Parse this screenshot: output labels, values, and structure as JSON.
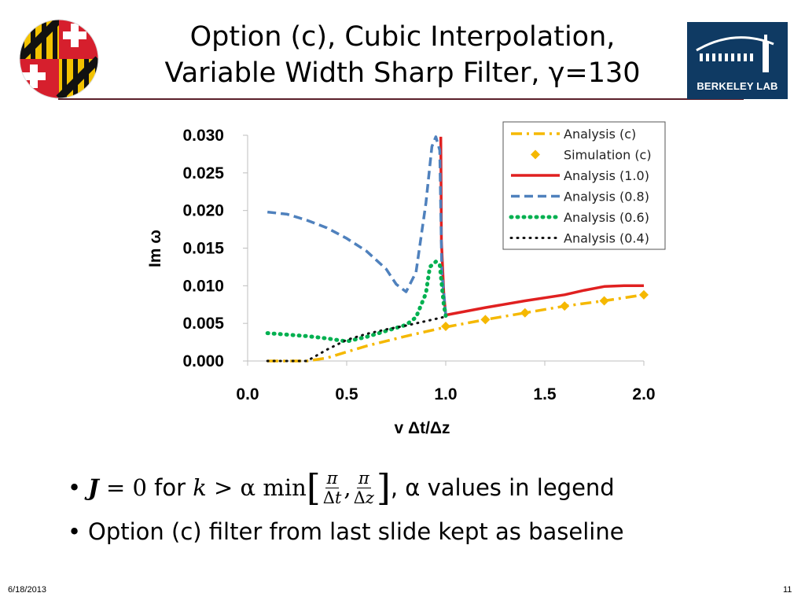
{
  "slide": {
    "title_line1": "Option (c), Cubic Interpolation,",
    "title_line2": "Variable Width Sharp Filter, γ=130",
    "logo_right_label": "BERKELEY LAB",
    "bullet1_suffix": ", α values in legend",
    "bullet2": "Option (c) filter from last slide kept as baseline",
    "footer_date": "6/18/2013",
    "footer_page": "11"
  },
  "chart_data": {
    "type": "line",
    "title": "",
    "xlabel": "v Δt/Δz",
    "ylabel": "Im ω",
    "xlim": [
      0.0,
      2.0
    ],
    "ylim": [
      0.0,
      0.03
    ],
    "xticks": [
      "0.0",
      "0.5",
      "1.0",
      "1.5",
      "2.0"
    ],
    "yticks": [
      "0.000",
      "0.005",
      "0.010",
      "0.015",
      "0.020",
      "0.025",
      "0.030"
    ],
    "grid": false,
    "legend_position": "top-right",
    "series": [
      {
        "name": "Analysis (c)",
        "style": "dashdot",
        "color": "#f5b800",
        "x": [
          0.1,
          0.3,
          0.4,
          0.5,
          0.6,
          0.8,
          1.0,
          1.2,
          1.4,
          1.6,
          1.8,
          2.0
        ],
        "y": [
          0.0,
          0.0,
          0.0004,
          0.0012,
          0.002,
          0.0033,
          0.0045,
          0.0055,
          0.0064,
          0.0073,
          0.008,
          0.0088
        ]
      },
      {
        "name": "Simulation (c)",
        "style": "markers",
        "color": "#f5b800",
        "x": [
          1.0,
          1.2,
          1.4,
          1.6,
          1.8,
          2.0
        ],
        "y": [
          0.0046,
          0.0055,
          0.0064,
          0.0073,
          0.008,
          0.0088
        ]
      },
      {
        "name": "Analysis (1.0)",
        "style": "solid",
        "color": "#e02020",
        "x": [
          0.975,
          0.978,
          0.99,
          1.0,
          1.2,
          1.4,
          1.6,
          1.7,
          1.8,
          1.9,
          2.0
        ],
        "y": [
          0.0298,
          0.016,
          0.009,
          0.0061,
          0.0071,
          0.008,
          0.0088,
          0.0094,
          0.0099,
          0.01,
          0.01
        ]
      },
      {
        "name": "Analysis (0.8)",
        "style": "dashed",
        "color": "#4f81bd",
        "x": [
          0.1,
          0.2,
          0.3,
          0.4,
          0.5,
          0.6,
          0.7,
          0.75,
          0.8,
          0.85,
          0.9,
          0.93,
          0.95,
          0.97,
          0.98,
          1.0
        ],
        "y": [
          0.0198,
          0.0195,
          0.0187,
          0.0177,
          0.0163,
          0.0146,
          0.0122,
          0.0102,
          0.0092,
          0.0118,
          0.021,
          0.0285,
          0.0298,
          0.028,
          0.012,
          0.0061
        ]
      },
      {
        "name": "Analysis (0.6)",
        "style": "dotted",
        "color": "#00b050",
        "x": [
          0.1,
          0.2,
          0.3,
          0.4,
          0.5,
          0.6,
          0.7,
          0.8,
          0.85,
          0.9,
          0.92,
          0.95,
          0.97,
          0.99,
          1.0
        ],
        "y": [
          0.0037,
          0.0035,
          0.0033,
          0.003,
          0.0026,
          0.0032,
          0.004,
          0.0048,
          0.0058,
          0.009,
          0.0125,
          0.0132,
          0.0128,
          0.0075,
          0.006
        ]
      },
      {
        "name": "Analysis (0.4)",
        "style": "dotted",
        "color": "#111111",
        "x": [
          0.1,
          0.2,
          0.3,
          0.4,
          0.5,
          0.6,
          0.7,
          0.8,
          0.9,
          1.0
        ],
        "y": [
          0.0,
          0.0,
          0.0,
          0.0015,
          0.0028,
          0.0036,
          0.0042,
          0.0047,
          0.0053,
          0.0059
        ]
      }
    ]
  }
}
